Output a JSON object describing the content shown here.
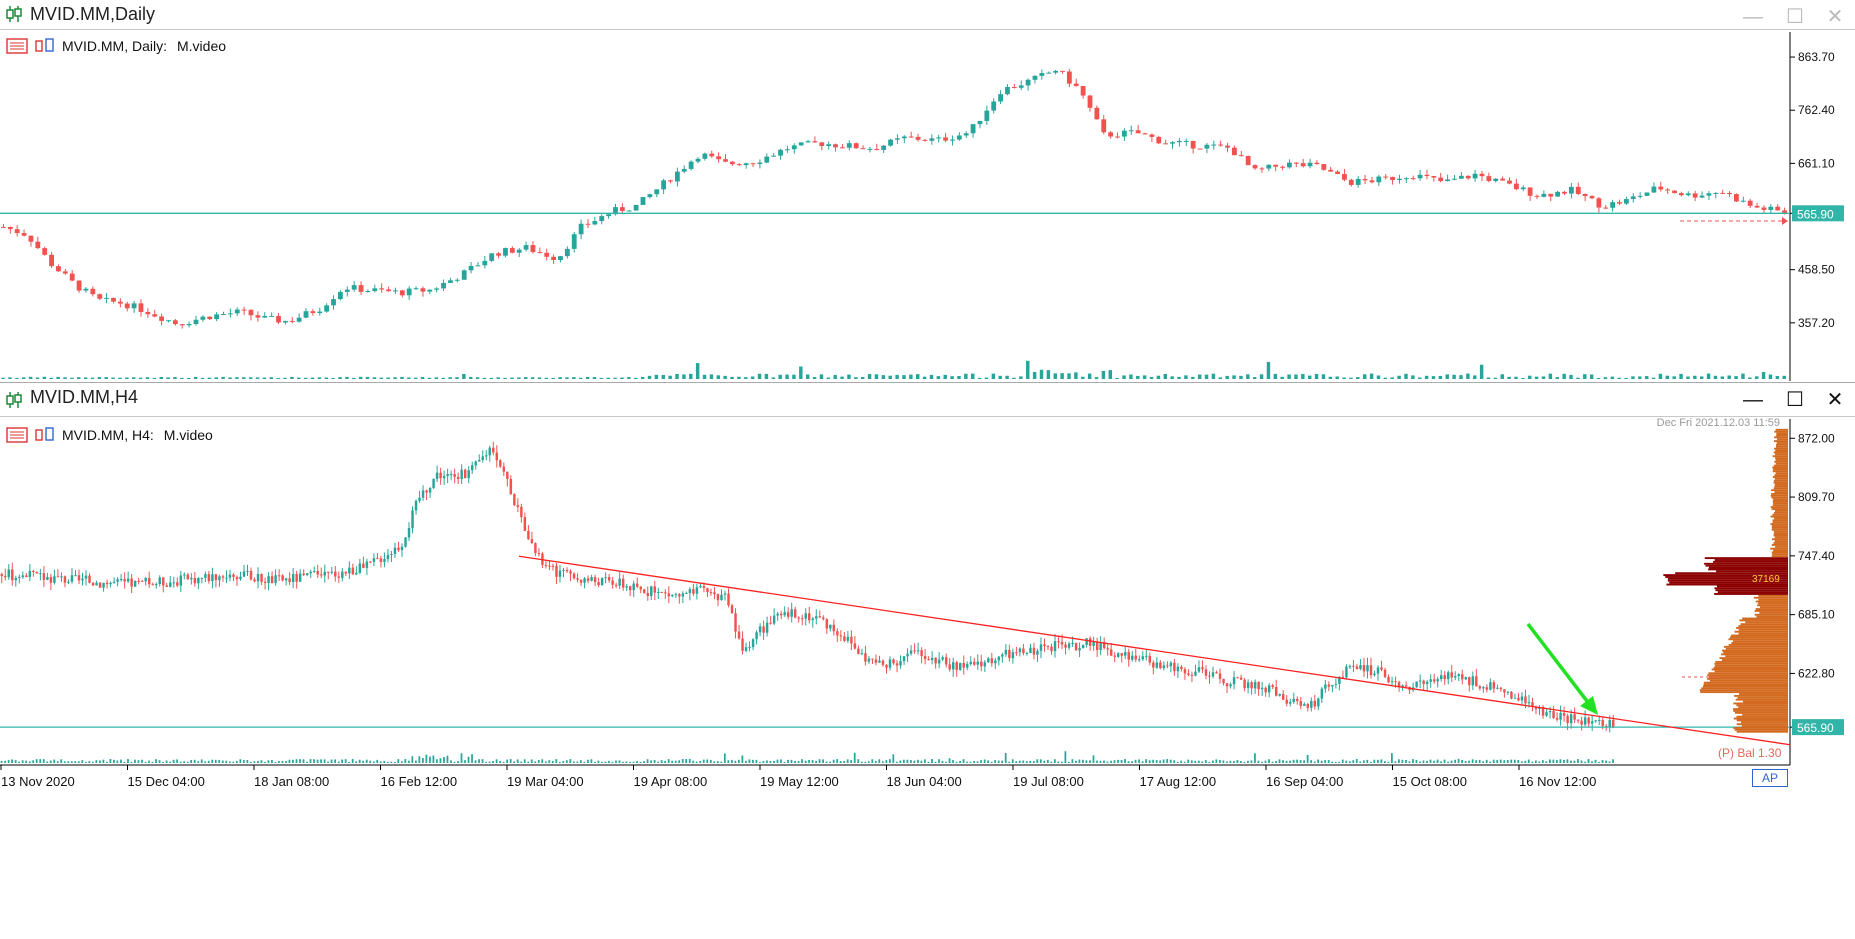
{
  "window_top": {
    "title": "MVID.MM,Daily",
    "symbol_label": "MVID.MM, Daily:",
    "description": "M.video"
  },
  "window_bottom": {
    "title": "MVID.MM,H4",
    "symbol_label": "MVID.MM, H4:",
    "description": "M.video",
    "server_time": "Dec Fri 2021.12.03 11:59",
    "profile_label": "37169",
    "balance_label": "(P) Bal 1.30",
    "ap_label": "AP"
  },
  "colors": {
    "bull": "#26a69a",
    "bear": "#ef5350",
    "hline": "#30b5a8",
    "trendline": "#ff2020",
    "arrow": "#22e022",
    "profile": "#d2691e",
    "profile_dark": "#8b0000",
    "price_tag": "#30b5a8"
  },
  "chart_data": [
    {
      "type": "candlestick",
      "title": "MVID.MM, Daily: M.video",
      "y_ticks": [
        "863.70",
        "762.40",
        "661.10",
        "565.90",
        "458.50",
        "357.20"
      ],
      "y_tick_values": [
        863.7,
        762.4,
        661.1,
        565.9,
        458.5,
        357.2
      ],
      "ylim": [
        294,
        900
      ],
      "current_price": 565.9,
      "current_price_label": "565.90",
      "series_close_path": [
        [
          0,
          540
        ],
        [
          3,
          525
        ],
        [
          6,
          470
        ],
        [
          9,
          430
        ],
        [
          12,
          400
        ],
        [
          15,
          395
        ],
        [
          18,
          380
        ],
        [
          22,
          355
        ],
        [
          26,
          370
        ],
        [
          30,
          378
        ],
        [
          33,
          365
        ],
        [
          36,
          360
        ],
        [
          40,
          385
        ],
        [
          43,
          425
        ],
        [
          46,
          420
        ],
        [
          50,
          415
        ],
        [
          54,
          420
        ],
        [
          58,
          450
        ],
        [
          62,
          490
        ],
        [
          66,
          500
        ],
        [
          70,
          480
        ],
        [
          73,
          540
        ],
        [
          77,
          570
        ],
        [
          80,
          580
        ],
        [
          84,
          630
        ],
        [
          88,
          680
        ],
        [
          91,
          660
        ],
        [
          95,
          665
        ],
        [
          99,
          690
        ],
        [
          103,
          700
        ],
        [
          106,
          695
        ],
        [
          110,
          690
        ],
        [
          114,
          710
        ],
        [
          118,
          705
        ],
        [
          122,
          720
        ],
        [
          126,
          800
        ],
        [
          130,
          820
        ],
        [
          133,
          840
        ],
        [
          136,
          800
        ],
        [
          139,
          715
        ],
        [
          143,
          720
        ],
        [
          147,
          700
        ],
        [
          151,
          695
        ],
        [
          155,
          690
        ],
        [
          158,
          645
        ],
        [
          162,
          660
        ],
        [
          166,
          655
        ],
        [
          170,
          625
        ],
        [
          174,
          630
        ],
        [
          178,
          640
        ],
        [
          182,
          625
        ],
        [
          186,
          640
        ],
        [
          190,
          620
        ],
        [
          194,
          600
        ],
        [
          198,
          610
        ],
        [
          202,
          580
        ],
        [
          205,
          590
        ],
        [
          209,
          615
        ],
        [
          213,
          600
        ],
        [
          217,
          608
        ],
        [
          221,
          578
        ],
        [
          225,
          568
        ]
      ],
      "volume_note": "volume histogram at bottom"
    },
    {
      "type": "candlestick",
      "title": "MVID.MM, H4: M.video",
      "x_ticks": [
        "13 Nov 2020",
        "15 Dec 04:00",
        "18 Jan 08:00",
        "16 Feb 12:00",
        "19 Mar 04:00",
        "19 Apr 08:00",
        "19 May 12:00",
        "18 Jun 04:00",
        "19 Jul 08:00",
        "17 Aug 12:00",
        "16 Sep 04:00",
        "15 Oct 08:00",
        "16 Nov 12:00"
      ],
      "y_ticks": [
        "872.00",
        "809.70",
        "747.40",
        "685.10",
        "622.80",
        "565.90"
      ],
      "y_tick_values": [
        872.0,
        809.7,
        747.4,
        685.1,
        622.8,
        565.9
      ],
      "ylim": [
        530,
        885
      ],
      "current_price": 565.9,
      "current_price_label": "565.90",
      "trendline": {
        "from": [
          "19 Mar 04:00",
          747
        ],
        "to": [
          "16 Nov 12:00",
          590
        ]
      },
      "series_close_path": [
        [
          0,
          728
        ],
        [
          10,
          725
        ],
        [
          20,
          720
        ],
        [
          30,
          718
        ],
        [
          40,
          722
        ],
        [
          50,
          728
        ],
        [
          60,
          722
        ],
        [
          70,
          726
        ],
        [
          80,
          735
        ],
        [
          88,
          760
        ],
        [
          92,
          810
        ],
        [
          96,
          835
        ],
        [
          100,
          830
        ],
        [
          104,
          840
        ],
        [
          108,
          865
        ],
        [
          112,
          820
        ],
        [
          116,
          760
        ],
        [
          120,
          735
        ],
        [
          125,
          725
        ],
        [
          130,
          722
        ],
        [
          135,
          720
        ],
        [
          140,
          712
        ],
        [
          145,
          708
        ],
        [
          150,
          705
        ],
        [
          155,
          712
        ],
        [
          160,
          700
        ],
        [
          163,
          645
        ],
        [
          166,
          665
        ],
        [
          170,
          680
        ],
        [
          175,
          688
        ],
        [
          180,
          682
        ],
        [
          185,
          665
        ],
        [
          190,
          640
        ],
        [
          195,
          630
        ],
        [
          200,
          645
        ],
        [
          205,
          640
        ],
        [
          210,
          630
        ],
        [
          215,
          632
        ],
        [
          220,
          642
        ],
        [
          225,
          645
        ],
        [
          230,
          652
        ],
        [
          235,
          650
        ],
        [
          240,
          655
        ],
        [
          245,
          642
        ],
        [
          250,
          638
        ],
        [
          255,
          632
        ],
        [
          260,
          628
        ],
        [
          265,
          622
        ],
        [
          270,
          615
        ],
        [
          275,
          612
        ],
        [
          280,
          605
        ],
        [
          285,
          590
        ],
        [
          288,
          585
        ],
        [
          292,
          610
        ],
        [
          296,
          625
        ],
        [
          300,
          630
        ],
        [
          305,
          620
        ],
        [
          310,
          605
        ],
        [
          315,
          615
        ],
        [
          320,
          622
        ],
        [
          325,
          612
        ],
        [
          330,
          605
        ],
        [
          335,
          595
        ],
        [
          340,
          580
        ],
        [
          345,
          575
        ],
        [
          350,
          572
        ],
        [
          355,
          568
        ]
      ]
    }
  ]
}
